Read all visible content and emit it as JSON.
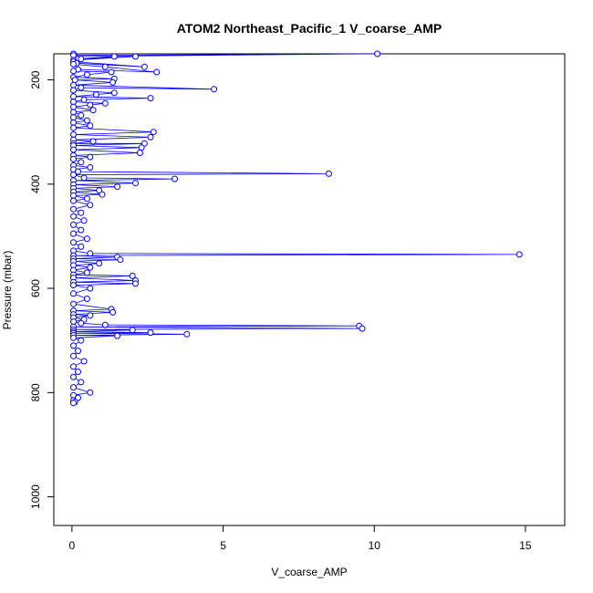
{
  "chart_data": {
    "type": "scatter",
    "title": "ATOM2 Northeast_Pacific_1 V_coarse_AMP",
    "xlabel": "V_coarse_AMP",
    "ylabel": "Pressure (mbar)",
    "xlim": [
      -0.6,
      16.3
    ],
    "ylim": [
      1055,
      150
    ],
    "y_reversed": true,
    "x_ticks": [
      0,
      5,
      10,
      15
    ],
    "y_ticks": [
      200,
      400,
      600,
      800,
      1000
    ],
    "grid": false,
    "legend": "none",
    "marker": "open-circle",
    "connected": true,
    "color": "#0000ff",
    "series": [
      {
        "points": [
          [
            0.05,
            150
          ],
          [
            0.1,
            155
          ],
          [
            10.1,
            150
          ],
          [
            0.05,
            153
          ],
          [
            0.2,
            160
          ],
          [
            1.4,
            155
          ],
          [
            0.05,
            162
          ],
          [
            2.1,
            155
          ],
          [
            0.3,
            160
          ],
          [
            0.05,
            165
          ],
          [
            2.4,
            175
          ],
          [
            0.15,
            168
          ],
          [
            0.05,
            170
          ],
          [
            1.1,
            175
          ],
          [
            2.8,
            185
          ],
          [
            0.2,
            180
          ],
          [
            0.05,
            183
          ],
          [
            1.3,
            185
          ],
          [
            0.5,
            190
          ],
          [
            0.05,
            195
          ],
          [
            1.4,
            198
          ],
          [
            0.1,
            200
          ],
          [
            1.35,
            205
          ],
          [
            0.05,
            210
          ],
          [
            4.7,
            218
          ],
          [
            0.3,
            215
          ],
          [
            0.05,
            220
          ],
          [
            1.4,
            225
          ],
          [
            0.8,
            228
          ],
          [
            0.05,
            232
          ],
          [
            2.6,
            235
          ],
          [
            0.4,
            238
          ],
          [
            0.05,
            242
          ],
          [
            1.1,
            245
          ],
          [
            0.6,
            248
          ],
          [
            0.05,
            252
          ],
          [
            0.7,
            258
          ],
          [
            0.05,
            262
          ],
          [
            0.3,
            268
          ],
          [
            0.05,
            272
          ],
          [
            0.5,
            278
          ],
          [
            0.05,
            282
          ],
          [
            0.6,
            288
          ],
          [
            0.05,
            292
          ],
          [
            2.7,
            300
          ],
          [
            0.05,
            305
          ],
          [
            2.6,
            310
          ],
          [
            0.05,
            315
          ],
          [
            0.7,
            318
          ],
          [
            0.05,
            322
          ],
          [
            2.4,
            322
          ],
          [
            0.05,
            326
          ],
          [
            2.3,
            330
          ],
          [
            0.05,
            334
          ],
          [
            2.25,
            340
          ],
          [
            0.05,
            345
          ],
          [
            0.6,
            348
          ],
          [
            0.05,
            352
          ],
          [
            0.3,
            358
          ],
          [
            0.05,
            364
          ],
          [
            0.6,
            368
          ],
          [
            0.05,
            372
          ],
          [
            0.2,
            376
          ],
          [
            8.5,
            380
          ],
          [
            0.05,
            382
          ],
          [
            0.4,
            388
          ],
          [
            3.4,
            390
          ],
          [
            0.05,
            393
          ],
          [
            2.1,
            398
          ],
          [
            0.05,
            401
          ],
          [
            1.5,
            405
          ],
          [
            0.05,
            408
          ],
          [
            0.9,
            412
          ],
          [
            0.05,
            415
          ],
          [
            1.0,
            420
          ],
          [
            0.05,
            422
          ],
          [
            0.5,
            428
          ],
          [
            0.05,
            432
          ],
          [
            0.6,
            440
          ],
          [
            0.05,
            448
          ],
          [
            0.3,
            455
          ],
          [
            0.05,
            462
          ],
          [
            0.4,
            470
          ],
          [
            0.05,
            478
          ],
          [
            0.3,
            488
          ],
          [
            0.05,
            495
          ],
          [
            0.5,
            505
          ],
          [
            0.05,
            512
          ],
          [
            0.3,
            520
          ],
          [
            0.05,
            528
          ],
          [
            0.6,
            533
          ],
          [
            14.8,
            535
          ],
          [
            0.05,
            537
          ],
          [
            1.5,
            540
          ],
          [
            0.05,
            543
          ],
          [
            1.6,
            545
          ],
          [
            0.05,
            548
          ],
          [
            0.9,
            552
          ],
          [
            0.05,
            556
          ],
          [
            0.6,
            560
          ],
          [
            0.05,
            565
          ],
          [
            0.5,
            570
          ],
          [
            0.05,
            574
          ],
          [
            2.0,
            576
          ],
          [
            0.05,
            580
          ],
          [
            2.1,
            585
          ],
          [
            0.05,
            588
          ],
          [
            2.1,
            591
          ],
          [
            0.05,
            594
          ],
          [
            0.6,
            600
          ],
          [
            0.05,
            610
          ],
          [
            0.5,
            620
          ],
          [
            0.05,
            630
          ],
          [
            1.3,
            640
          ],
          [
            0.05,
            643
          ],
          [
            1.35,
            646
          ],
          [
            0.05,
            650
          ],
          [
            0.6,
            652
          ],
          [
            0.05,
            656
          ],
          [
            0.4,
            660
          ],
          [
            0.05,
            664
          ],
          [
            0.3,
            667
          ],
          [
            1.1,
            670
          ],
          [
            9.5,
            672
          ],
          [
            0.05,
            674
          ],
          [
            9.6,
            677
          ],
          [
            0.05,
            679
          ],
          [
            2.0,
            680
          ],
          [
            0.05,
            683
          ],
          [
            2.6,
            685
          ],
          [
            0.05,
            686
          ],
          [
            3.8,
            688
          ],
          [
            0.05,
            690
          ],
          [
            1.5,
            691
          ],
          [
            0.05,
            695
          ],
          [
            0.3,
            700
          ],
          [
            0.05,
            710
          ],
          [
            0.2,
            720
          ],
          [
            0.05,
            730
          ],
          [
            0.4,
            740
          ],
          [
            0.05,
            750
          ],
          [
            0.2,
            760
          ],
          [
            0.05,
            770
          ],
          [
            0.3,
            780
          ],
          [
            0.05,
            790
          ],
          [
            0.6,
            800
          ],
          [
            0.05,
            805
          ],
          [
            0.2,
            810
          ],
          [
            0.05,
            815
          ],
          [
            0.1,
            818
          ],
          [
            0.05,
            820
          ]
        ]
      }
    ]
  }
}
